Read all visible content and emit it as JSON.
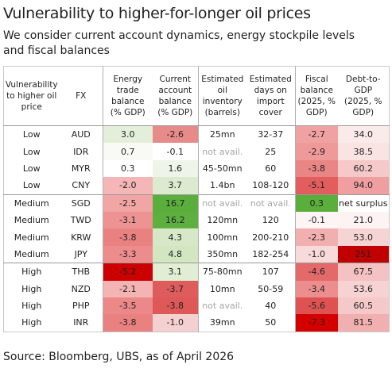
{
  "header": {
    "title": "Vulnerability to higher-for-longer oil prices",
    "subtitle": "We consider current account dynamics, energy stockpile levels and fiscal balances"
  },
  "table": {
    "columns": [
      [
        "Vulnerability",
        "to higher oil",
        "price"
      ],
      [
        "FX"
      ],
      [
        "Energy",
        "trade",
        "balance",
        "(% GDP)"
      ],
      [
        "Current",
        "account",
        "balance",
        "(% GDP)"
      ],
      [
        "Estimated",
        "oil",
        "inventory",
        "(barrels)"
      ],
      [
        "Estimated",
        "days on",
        "import",
        "cover"
      ],
      [
        "Fiscal",
        "balance",
        "(2025, %",
        "GDP)"
      ],
      [
        "Debt-to-",
        "GDP",
        "(2025, %",
        "GDP)"
      ]
    ],
    "rows": [
      [
        "Low",
        "AUD",
        "3.0",
        "-2.6",
        "25mn",
        "32-37",
        "-2.7",
        "34.0"
      ],
      [
        "Low",
        "IDR",
        "0.7",
        "-0.1",
        "not avail.",
        "25",
        "-2.9",
        "38.5"
      ],
      [
        "Low",
        "MYR",
        "0.3",
        "1.6",
        "45-50mn",
        "60",
        "-3.8",
        "60.2"
      ],
      [
        "Low",
        "CNY",
        "-2.0",
        "3.7",
        "1.4bn",
        "108-120",
        "-5.1",
        "94.0"
      ],
      [
        "Medium",
        "SGD",
        "-2.5",
        "16.7",
        "not avail.",
        "not avail.",
        "0.3",
        "net surplus"
      ],
      [
        "Medium",
        "TWD",
        "-3.1",
        "16.2",
        "120mn",
        "120",
        "-0.1",
        "21.0"
      ],
      [
        "Medium",
        "KRW",
        "-3.8",
        "4.3",
        "100mn",
        "200-210",
        "-2.3",
        "53.0"
      ],
      [
        "Medium",
        "JPY",
        "-3.3",
        "4.8",
        "350mn",
        "182-254",
        "-1.0",
        "251"
      ],
      [
        "High",
        "THB",
        "-5.2",
        "3.1",
        "75-80mn",
        "107",
        "-4.6",
        "67.5"
      ],
      [
        "High",
        "NZD",
        "-2.1",
        "-3.7",
        "10mn",
        "50-59",
        "-3.4",
        "53.6"
      ],
      [
        "High",
        "PHP",
        "-3.5",
        "-3.8",
        "not avail.",
        "40",
        "-5.6",
        "60.5"
      ],
      [
        "High",
        "INR",
        "-3.8",
        "-1.0",
        "39mn",
        "50",
        "-7.3",
        "81.5"
      ]
    ],
    "cell_colors": [
      [
        null,
        null,
        "#e4efda",
        "#e78a8a",
        null,
        null,
        "#f0a2a2",
        "#fbeaea"
      ],
      [
        null,
        null,
        "#f9faf5",
        null,
        null,
        null,
        "#ef9a9a",
        "#fae3e3"
      ],
      [
        null,
        null,
        null,
        "#eef4e8",
        null,
        null,
        "#ea8585",
        "#f5c9c9"
      ],
      [
        null,
        null,
        "#f4b6b6",
        "#dcebd0",
        null,
        null,
        "#e25e5e",
        "#ef9f9f"
      ],
      [
        null,
        null,
        "#f1a5a5",
        "#5aae3c",
        null,
        null,
        "#5aae3c",
        null
      ],
      [
        null,
        null,
        "#ee9393",
        "#5db03f",
        null,
        null,
        "#fdf4f4",
        "#fdf3f3"
      ],
      [
        null,
        null,
        "#ea8181",
        "#d6e8c8",
        null,
        null,
        "#f2afaf",
        "#f7d4d4"
      ],
      [
        null,
        null,
        "#ed8c8c",
        "#d2e6c2",
        null,
        null,
        "#f9dada",
        "#c00000"
      ],
      [
        null,
        null,
        "#cc0000",
        "#e1eed6",
        null,
        null,
        "#e46a6a",
        "#f4c2c2"
      ],
      [
        null,
        null,
        "#f4b4b4",
        "#df5c5c",
        null,
        null,
        "#ec8e8e",
        "#f7d2d2"
      ],
      [
        null,
        null,
        "#ec8888",
        "#de5858",
        null,
        null,
        "#df5252",
        "#f5c9c9"
      ],
      [
        null,
        null,
        "#ea8181",
        "#f5d0d0",
        null,
        null,
        "#d40000",
        "#f1b0b0"
      ]
    ],
    "text_colors": [
      [
        null,
        null,
        null,
        null,
        null,
        null,
        null,
        null
      ],
      [
        null,
        null,
        null,
        null,
        "#a6a6a6",
        null,
        null,
        null
      ],
      [
        null,
        null,
        null,
        null,
        null,
        null,
        null,
        null
      ],
      [
        null,
        null,
        null,
        null,
        null,
        null,
        null,
        null
      ],
      [
        null,
        null,
        null,
        null,
        "#a6a6a6",
        "#a6a6a6",
        null,
        null
      ],
      [
        null,
        null,
        null,
        null,
        null,
        null,
        null,
        null
      ],
      [
        null,
        null,
        null,
        null,
        null,
        null,
        null,
        null
      ],
      [
        null,
        null,
        null,
        null,
        null,
        null,
        null,
        null
      ],
      [
        null,
        null,
        null,
        null,
        null,
        null,
        null,
        null
      ],
      [
        null,
        null,
        null,
        null,
        null,
        null,
        null,
        null
      ],
      [
        null,
        null,
        null,
        null,
        "#a6a6a6",
        null,
        null,
        null
      ],
      [
        null,
        null,
        null,
        null,
        null,
        null,
        null,
        null
      ]
    ]
  },
  "footer": {
    "source": "Source: Bloomberg, UBS, as of April 2026"
  }
}
